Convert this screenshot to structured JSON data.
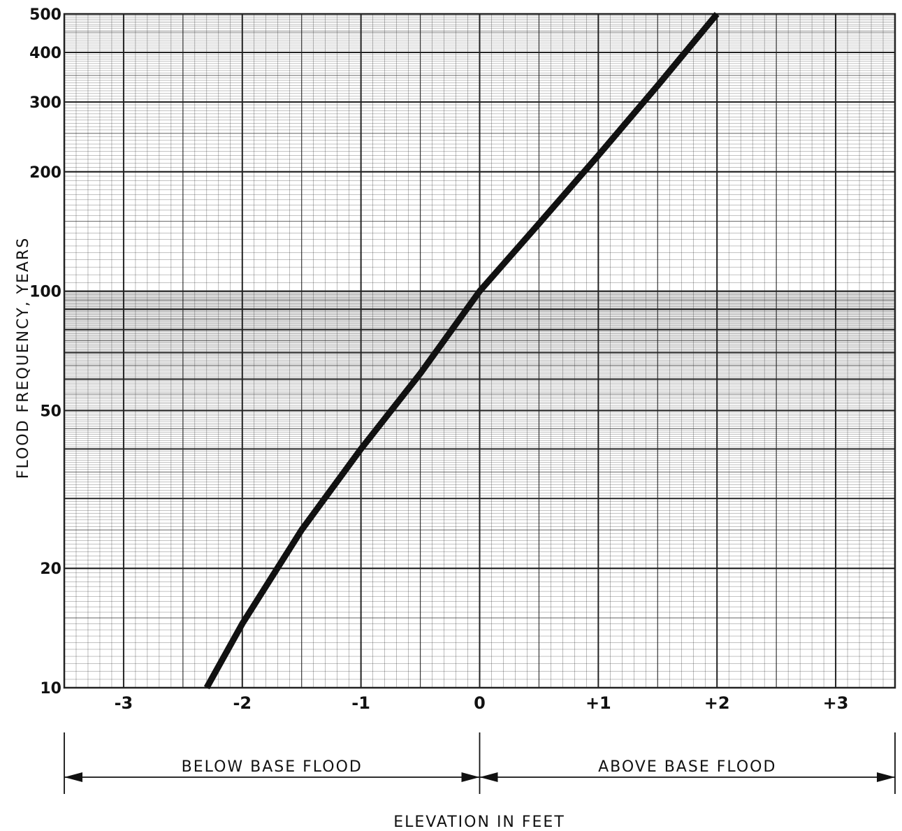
{
  "chart_data": {
    "type": "line",
    "title": "",
    "xlabel": "ELEVATION IN FEET",
    "ylabel": "FLOOD FREQUENCY, YEARS",
    "y_scale": "log",
    "xlim": [
      -3.5,
      3.5
    ],
    "ylim": [
      10,
      500
    ],
    "grid": true,
    "x_ticks": [
      {
        "value": -3,
        "label": "-3"
      },
      {
        "value": -2,
        "label": "-2"
      },
      {
        "value": -1,
        "label": "-1"
      },
      {
        "value": 0,
        "label": "0"
      },
      {
        "value": 1,
        "label": "+1"
      },
      {
        "value": 2,
        "label": "+2"
      },
      {
        "value": 3,
        "label": "+3"
      }
    ],
    "y_ticks": [
      {
        "value": 10,
        "label": "10"
      },
      {
        "value": 20,
        "label": "20"
      },
      {
        "value": 50,
        "label": "50"
      },
      {
        "value": 100,
        "label": "100"
      },
      {
        "value": 200,
        "label": "200"
      },
      {
        "value": 300,
        "label": "300"
      },
      {
        "value": 400,
        "label": "400"
      },
      {
        "value": 500,
        "label": "500"
      }
    ],
    "series": [
      {
        "x": [
          -2.3,
          -2.0,
          -1.5,
          -1.0,
          -0.5,
          0.0,
          0.5,
          1.0,
          1.5,
          2.0
        ],
        "y": [
          10,
          14.5,
          25,
          40,
          62,
          100,
          148,
          220,
          330,
          500
        ]
      }
    ],
    "regions": [
      {
        "label": "BELOW BASE FLOOD",
        "from": -3.5,
        "to": 0
      },
      {
        "label": "ABOVE BASE FLOOD",
        "from": 0,
        "to": 3.5
      }
    ],
    "colors": {
      "line": "#111111",
      "grid": "#222222",
      "background": "#ffffff"
    }
  }
}
